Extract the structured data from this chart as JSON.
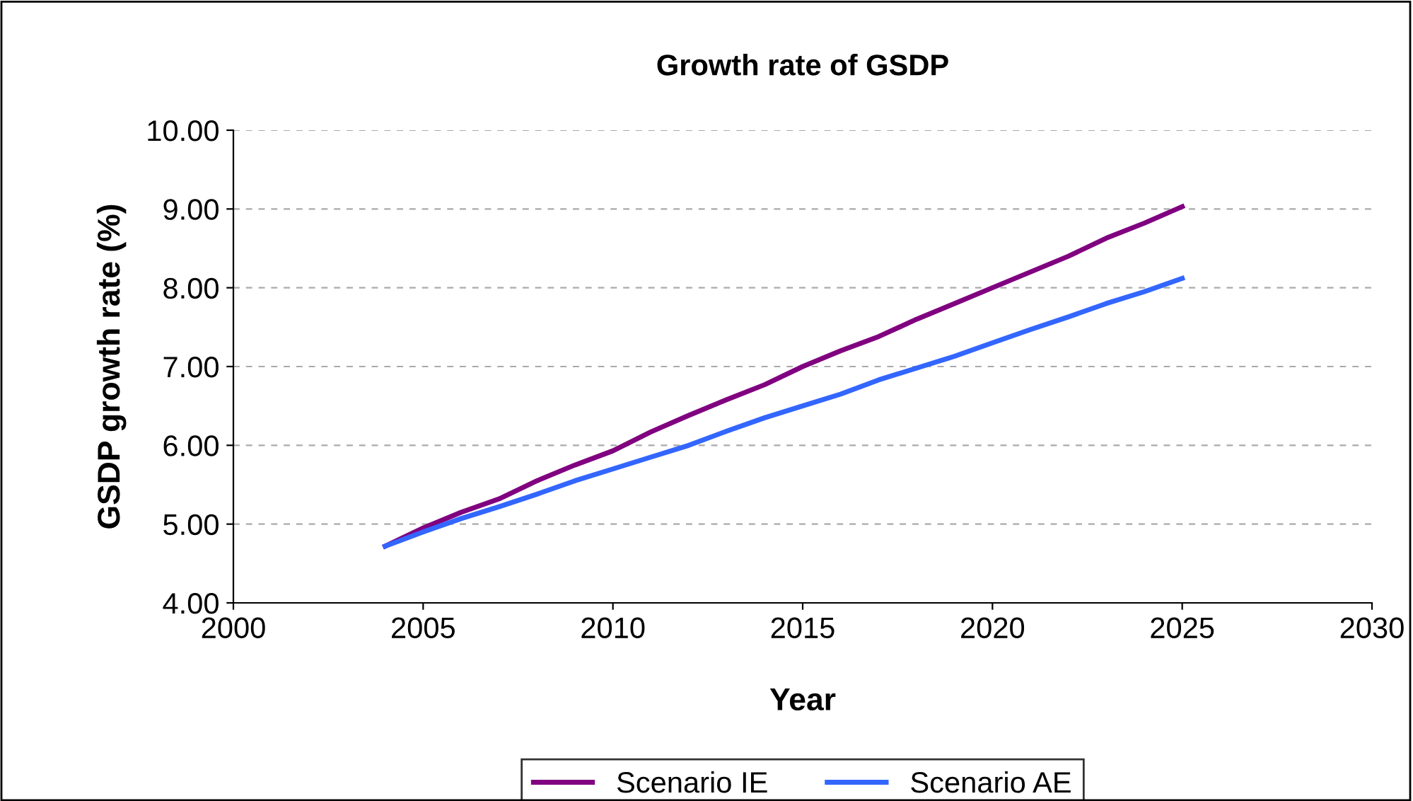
{
  "chart_data": {
    "type": "line",
    "title": "Growth rate of GSDP",
    "xlabel": "Year",
    "ylabel": "GSDP growth rate (%)",
    "x": [
      2004,
      2005,
      2006,
      2007,
      2008,
      2009,
      2010,
      2011,
      2012,
      2013,
      2014,
      2015,
      2016,
      2017,
      2018,
      2019,
      2020,
      2021,
      2022,
      2023,
      2024,
      2025
    ],
    "series": [
      {
        "name": "Scenario IE",
        "color": "#800080",
        "values": [
          4.72,
          4.95,
          5.15,
          5.32,
          5.55,
          5.75,
          5.93,
          6.17,
          6.38,
          6.58,
          6.77,
          7.0,
          7.2,
          7.38,
          7.6,
          7.8,
          8.0,
          8.2,
          8.4,
          8.63,
          8.82,
          9.03
        ]
      },
      {
        "name": "Scenario AE",
        "color": "#3366ff",
        "values": [
          4.72,
          4.9,
          5.07,
          5.22,
          5.38,
          5.55,
          5.7,
          5.85,
          6.0,
          6.18,
          6.35,
          6.5,
          6.65,
          6.83,
          6.98,
          7.13,
          7.3,
          7.47,
          7.63,
          7.8,
          7.95,
          8.12
        ]
      }
    ],
    "xlim": [
      2000,
      2030
    ],
    "xticks": [
      2000,
      2005,
      2010,
      2015,
      2020,
      2025,
      2030
    ],
    "ylim": [
      4,
      10
    ],
    "yticks": [
      {
        "value": 4,
        "label": "4.00"
      },
      {
        "value": 5,
        "label": "5.00"
      },
      {
        "value": 6,
        "label": "6.00"
      },
      {
        "value": 7,
        "label": "7.00"
      },
      {
        "value": 8,
        "label": "8.00"
      },
      {
        "value": 9,
        "label": "9.00"
      },
      {
        "value": 10,
        "label": "10.00"
      }
    ],
    "grid": "y",
    "legend": "bottom",
    "marker": "none",
    "line_style": "solid"
  }
}
